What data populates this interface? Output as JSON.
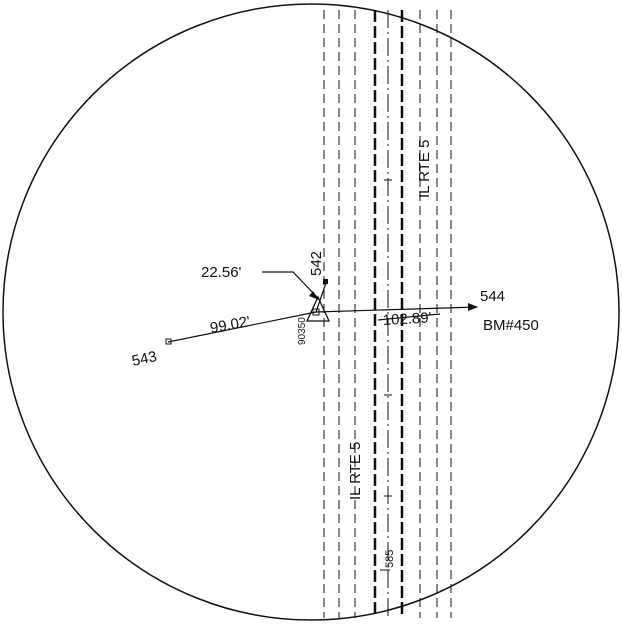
{
  "labels": {
    "road_name_upper": "IL RTE 5",
    "road_name_lower": "IL RTE 5",
    "dist_short": "22.56'",
    "dist_left": "99.02'",
    "dist_right": "102.89'",
    "point_542": "542",
    "point_543": "543",
    "point_544": "544",
    "benchmark": "BM#450",
    "station_code": "90350",
    "marker_585": "585"
  }
}
